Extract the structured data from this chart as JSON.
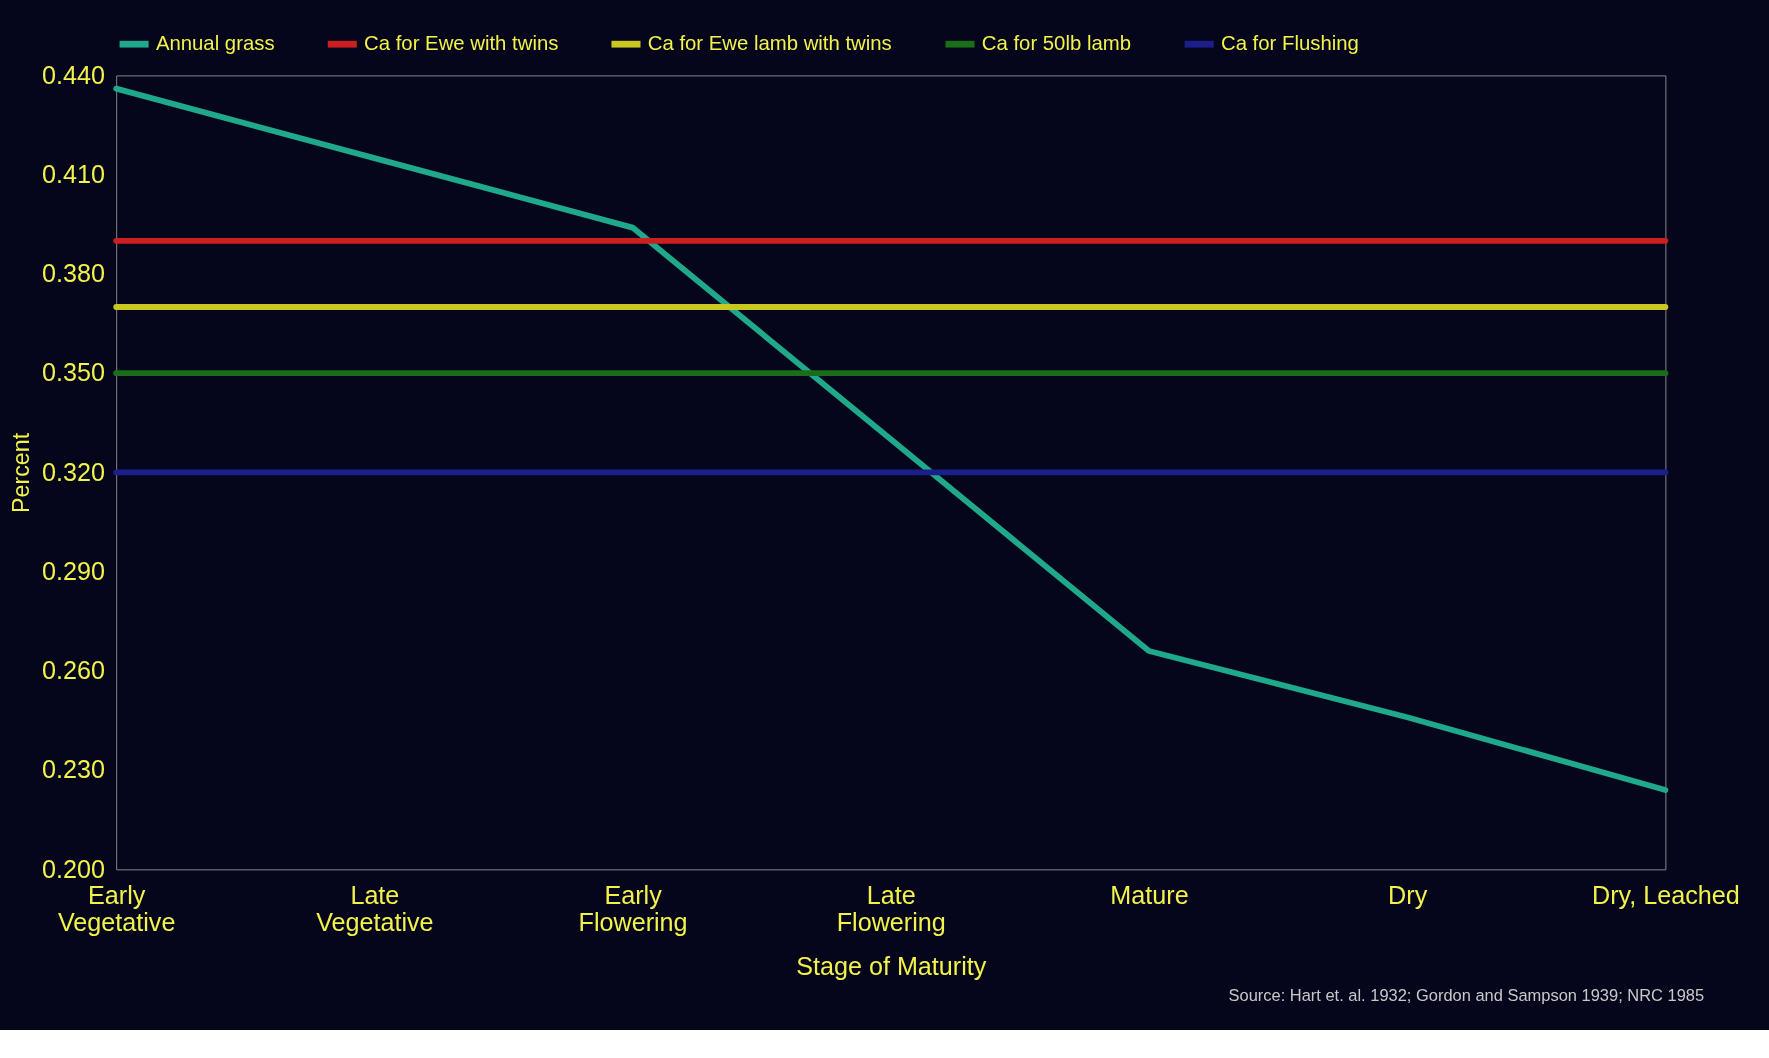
{
  "chart_data": {
    "type": "line",
    "xlabel": "Stage of Maturity",
    "ylabel": "Percent",
    "categories": [
      "Early\nVegetative",
      "Late\nVegetative",
      "Early\nFlowering",
      "Late\nFlowering",
      "Mature",
      "Dry",
      "Dry, Leached"
    ],
    "series": [
      {
        "name": "Annual grass",
        "color": "#1fa88a",
        "values": [
          0.436,
          0.415,
          0.394,
          0.33,
          0.266,
          0.246,
          0.224
        ]
      },
      {
        "name": "Ca for Ewe with twins",
        "color": "#cc1f1f",
        "values": [
          0.39,
          0.39,
          0.39,
          0.39,
          0.39,
          0.39,
          0.39
        ]
      },
      {
        "name": "Ca for Ewe lamb with twins",
        "color": "#c8c820",
        "values": [
          0.37,
          0.37,
          0.37,
          0.37,
          0.37,
          0.37,
          0.37
        ]
      },
      {
        "name": "Ca for 50lb lamb",
        "color": "#1a6e1a",
        "values": [
          0.35,
          0.35,
          0.35,
          0.35,
          0.35,
          0.35,
          0.35
        ]
      },
      {
        "name": "Ca for Flushing",
        "color": "#1c1f8a",
        "values": [
          0.32,
          0.32,
          0.32,
          0.32,
          0.32,
          0.32,
          0.32
        ]
      }
    ],
    "ylim": [
      0.2,
      0.44
    ],
    "yticks": [
      {
        "value": 0.2,
        "label": "0.200"
      },
      {
        "value": 0.23,
        "label": "0.230"
      },
      {
        "value": 0.26,
        "label": "0.260"
      },
      {
        "value": 0.29,
        "label": "0.290"
      },
      {
        "value": 0.32,
        "label": "0.320"
      },
      {
        "value": 0.35,
        "label": "0.350"
      },
      {
        "value": 0.38,
        "label": "0.380"
      },
      {
        "value": 0.41,
        "label": "0.410"
      },
      {
        "value": 0.44,
        "label": "0.440"
      }
    ],
    "grid": false,
    "legend": "top",
    "marker": "none",
    "line_style": "solid",
    "annotations": [
      "Source: Hart et. al. 1932; Gordon and Sampson 1939; NRC 1985"
    ]
  }
}
